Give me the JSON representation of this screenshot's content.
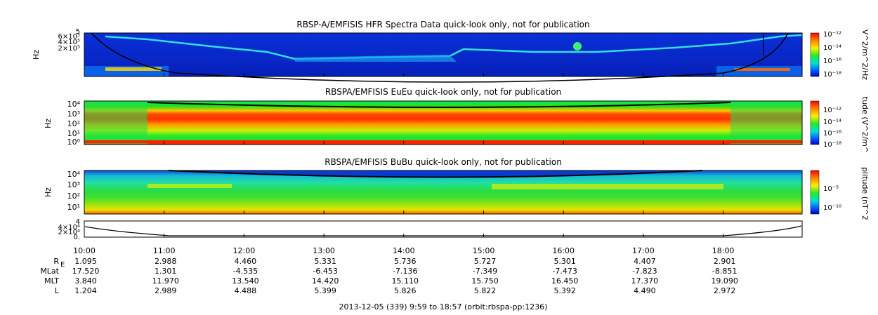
{
  "chart_data": [
    {
      "type": "heatmap",
      "title": "RBSP-A/EMFISIS  HFR Spectra Data quick-look only, not for publication",
      "ylabel": "Hz",
      "y_tick_labels": [
        "6×10⁵",
        "4×10⁵",
        "2×10⁵"
      ],
      "y_extra_label": "5",
      "y_scale": "linear",
      "colorbar": {
        "label": "V^2/m^2/Hz",
        "ticks": [
          "10⁻¹²",
          "10⁻¹⁴",
          "10⁻¹⁶",
          "10⁻¹⁸"
        ]
      }
    },
    {
      "type": "heatmap",
      "title": "RBSPA/EMFISIS  EuEu quick-look only, not for publication",
      "ylabel": "Hz",
      "y_scale": "log",
      "y_tick_labels": [
        "10⁴",
        "10³",
        "10²",
        "10¹",
        "10⁰"
      ],
      "colorbar": {
        "label": "tude (V^2/m^",
        "ticks": [
          "10⁻¹²",
          "10⁻¹⁴",
          "10⁻¹⁶",
          "10⁻¹⁸"
        ]
      }
    },
    {
      "type": "heatmap",
      "title": "RBSPA/EMFISIS  BuBu quick-look only, not for publication",
      "ylabel": "Hz",
      "y_scale": "log",
      "y_tick_labels": [
        "10⁴",
        "10³",
        "10²",
        "10¹"
      ],
      "colorbar": {
        "label": "plitude (nT^2",
        "ticks": [
          "10⁻⁵",
          "10⁻¹⁰"
        ]
      }
    },
    {
      "type": "line",
      "y_tick_labels": [
        "4×10⁴",
        "2×10⁴",
        "0."
      ],
      "y_top_label": "4",
      "note_values_unlabeled": true
    }
  ],
  "time_axis": {
    "labels": [
      "10:00",
      "11:00",
      "12:00",
      "13:00",
      "14:00",
      "15:00",
      "16:00",
      "17:00",
      "18:00"
    ]
  },
  "ephemeris": {
    "rows": [
      {
        "label": "R",
        "sub": "E",
        "values": [
          "1.095",
          "2.988",
          "4.460",
          "5.331",
          "5.736",
          "5.727",
          "5.301",
          "4.407",
          "2.901"
        ]
      },
      {
        "label": "MLat",
        "values": [
          "17.520",
          "1.301",
          "-4.535",
          "-6.453",
          "-7.136",
          "-7.349",
          "-7.473",
          "-7.823",
          "-8.851"
        ]
      },
      {
        "label": "MLT",
        "values": [
          "3.840",
          "11.970",
          "13.540",
          "14.420",
          "15.110",
          "15.750",
          "16.450",
          "17.370",
          "19.090"
        ]
      },
      {
        "label": "L",
        "values": [
          "1.204",
          "2.989",
          "4.488",
          "5.399",
          "5.826",
          "5.822",
          "5.392",
          "4.490",
          "2.972"
        ]
      }
    ]
  },
  "footer": "2013-12-05 (339) 9:59 to 18:57 (orbit:rbspa-pp:1236)",
  "colors": {
    "background": "#0000cc",
    "low": "#0a2fd8",
    "mid": "#10e060",
    "high": "#ff2a00"
  }
}
